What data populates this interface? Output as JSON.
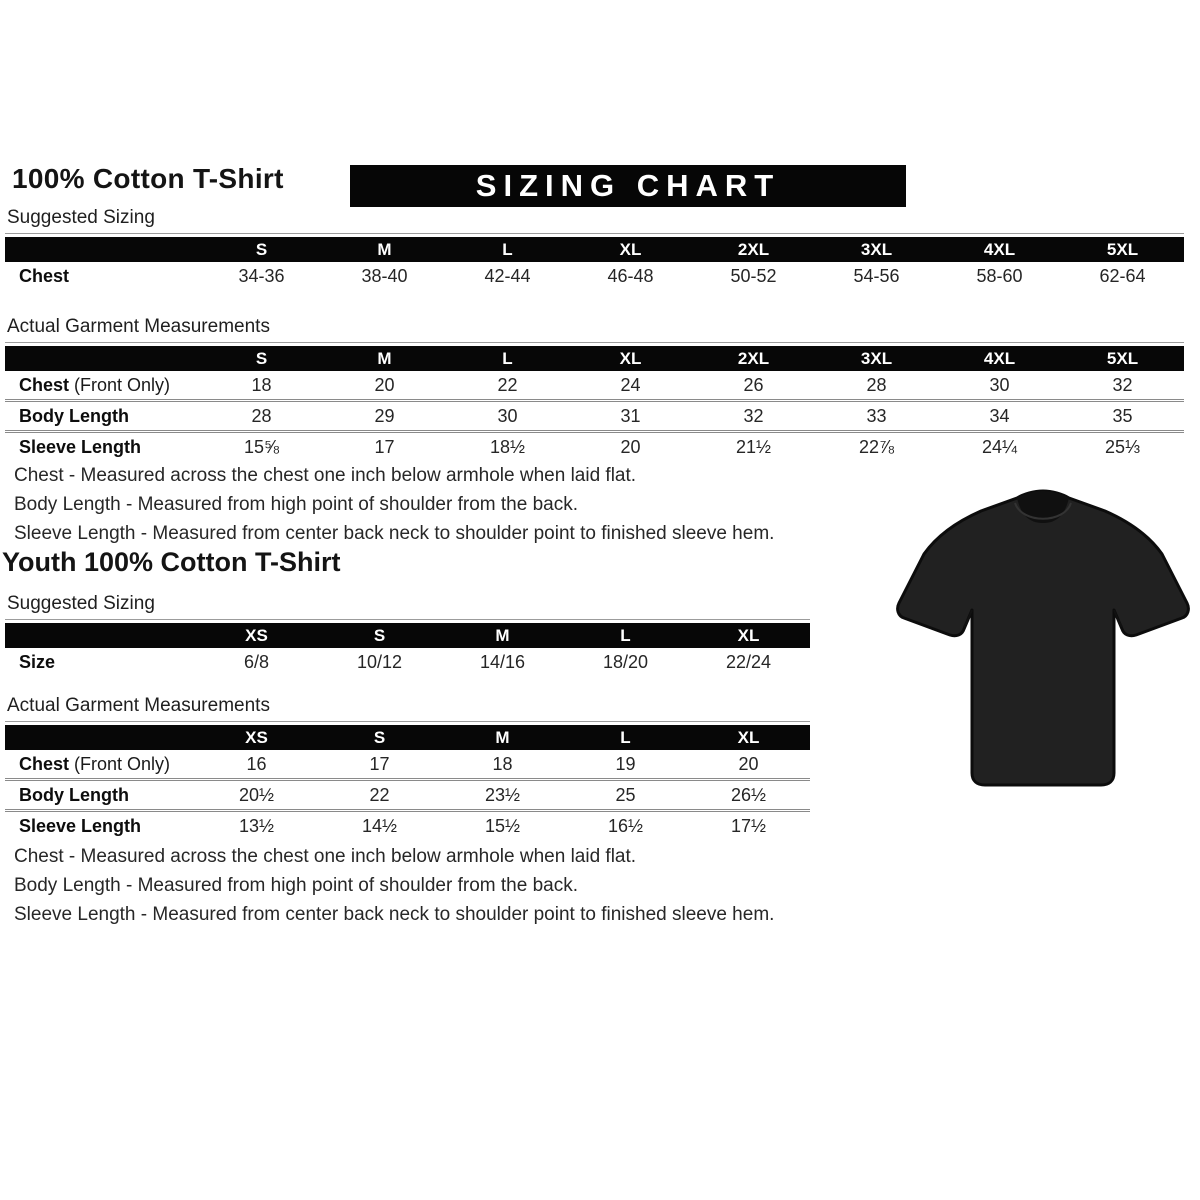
{
  "page": {
    "adult_title": "100% Cotton T-Shirt",
    "banner": "SIZING CHART",
    "youth_title": "Youth 100% Cotton T-Shirt"
  },
  "labels": {
    "suggested": "Suggested Sizing",
    "actual": "Actual Garment Measurements"
  },
  "colors": {
    "banner_bg": "#060606",
    "banner_text": "#ffffff",
    "table_header_bg": "#070707",
    "shirt": "#212121"
  },
  "adult": {
    "suggested": {
      "headers": [
        "S",
        "M",
        "L",
        "XL",
        "2XL",
        "3XL",
        "4XL",
        "5XL"
      ],
      "rows": [
        {
          "label": "Chest",
          "suffix": "",
          "values": [
            "34-36",
            "38-40",
            "42-44",
            "46-48",
            "50-52",
            "54-56",
            "58-60",
            "62-64"
          ]
        }
      ]
    },
    "actual": {
      "headers": [
        "S",
        "M",
        "L",
        "XL",
        "2XL",
        "3XL",
        "4XL",
        "5XL"
      ],
      "rows": [
        {
          "label": "Chest",
          "suffix": " (Front Only)",
          "values": [
            "18",
            "20",
            "22",
            "24",
            "26",
            "28",
            "30",
            "32"
          ]
        },
        {
          "label": "Body Length",
          "suffix": "",
          "values": [
            "28",
            "29",
            "30",
            "31",
            "32",
            "33",
            "34",
            "35"
          ]
        },
        {
          "label": "Sleeve Length",
          "suffix": "",
          "values": [
            "15⅝",
            "17",
            "18½",
            "20",
            "21½",
            "22⅞",
            "24¼",
            "25⅓"
          ]
        }
      ]
    },
    "notes": [
      "Chest - Measured across the chest one inch below armhole when laid flat.",
      "Body Length - Measured from high point of shoulder from the back.",
      "Sleeve Length - Measured from center back neck to shoulder point to finished sleeve hem."
    ]
  },
  "youth": {
    "suggested": {
      "headers": [
        "XS",
        "S",
        "M",
        "L",
        "XL"
      ],
      "rows": [
        {
          "label": "Size",
          "suffix": "",
          "values": [
            "6/8",
            "10/12",
            "14/16",
            "18/20",
            "22/24"
          ]
        }
      ]
    },
    "actual": {
      "headers": [
        "XS",
        "S",
        "M",
        "L",
        "XL"
      ],
      "rows": [
        {
          "label": "Chest",
          "suffix": " (Front Only)",
          "values": [
            "16",
            "17",
            "18",
            "19",
            "20"
          ]
        },
        {
          "label": "Body Length",
          "suffix": "",
          "values": [
            "20½",
            "22",
            "23½",
            "25",
            "26½"
          ]
        },
        {
          "label": "Sleeve Length",
          "suffix": "",
          "values": [
            "13½",
            "14½",
            "15½",
            "16½",
            "17½"
          ]
        }
      ]
    },
    "notes": [
      "Chest - Measured across the chest one inch below armhole when laid flat.",
      "Body Length - Measured from high point of shoulder from the back.",
      "Sleeve Length - Measured from center back neck to shoulder point to finished sleeve hem."
    ]
  }
}
